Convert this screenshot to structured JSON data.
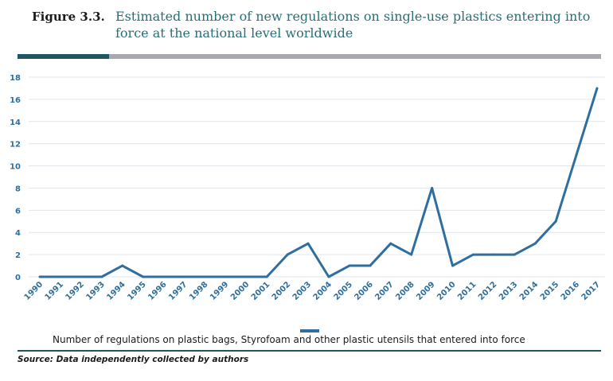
{
  "figure": {
    "label": "Figure  3.3.",
    "title": "Estimated number of new regulations on single-use plastics entering into force at the national level worldwide",
    "source": "Source:   Data independently collected by authors"
  },
  "colors": {
    "accent": "#2f6f9f",
    "title": "#2a6e77",
    "bar_dark": "#1f5660",
    "bar_grey": "#a7a9ac",
    "grid": "#e2e6ea"
  },
  "chart_data": {
    "type": "line",
    "categories": [
      "1990",
      "1991",
      "1992",
      "1993",
      "1994",
      "1995",
      "1996",
      "1997",
      "1998",
      "1999",
      "2000",
      "2001",
      "2002",
      "2003",
      "2004",
      "2005",
      "2006",
      "2007",
      "2008",
      "2009",
      "2010",
      "2011",
      "2012",
      "2013",
      "2014",
      "2015",
      "2016",
      "2017"
    ],
    "series": [
      {
        "name": "Number of regulations on plastic bags, Styrofoam and other plastic utensils that entered into force",
        "values": [
          0,
          0,
          0,
          0,
          1,
          0,
          0,
          0,
          0,
          0,
          0,
          0,
          2,
          3,
          0,
          1,
          1,
          3,
          2,
          8,
          1,
          2,
          2,
          2,
          3,
          5,
          11,
          17
        ]
      }
    ],
    "yticks": [
      0,
      2,
      4,
      6,
      8,
      10,
      12,
      14,
      16,
      18
    ],
    "ylim": [
      0,
      18
    ],
    "grid": true,
    "legend": "bottom"
  }
}
